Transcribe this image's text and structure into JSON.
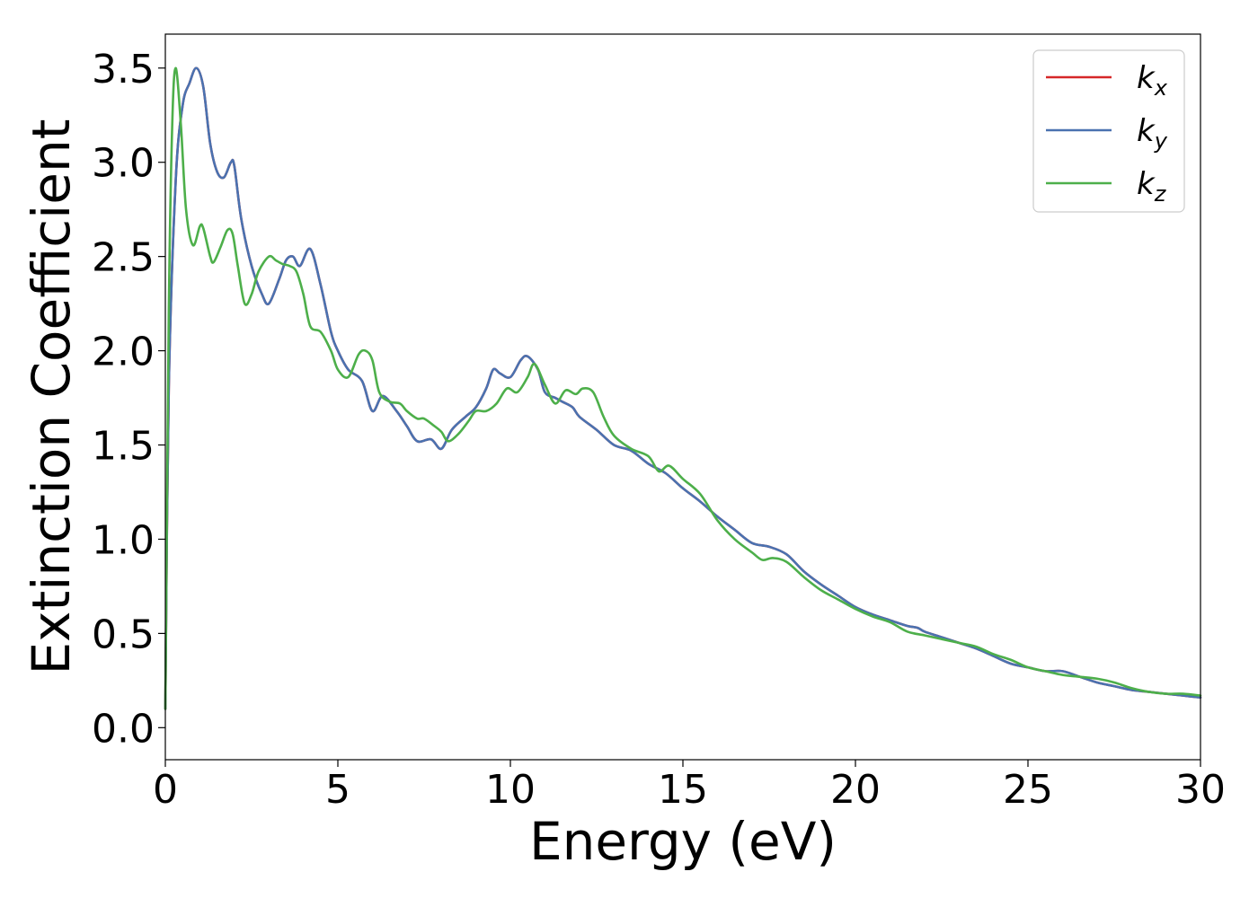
{
  "chart_data": {
    "type": "line",
    "title": "",
    "xlabel": "Energy (eV)",
    "ylabel": "Extinction Coefficient",
    "xlim": [
      0,
      30
    ],
    "ylim": [
      -0.17,
      3.68
    ],
    "xticks": [
      0,
      5,
      10,
      15,
      20,
      25,
      30
    ],
    "xtick_labels": [
      "0",
      "5",
      "10",
      "15",
      "20",
      "25",
      "30"
    ],
    "yticks": [
      0.0,
      0.5,
      1.0,
      1.5,
      2.0,
      2.5,
      3.0,
      3.5
    ],
    "ytick_labels": [
      "0.0",
      "0.5",
      "1.0",
      "1.5",
      "2.0",
      "2.5",
      "3.0",
      "3.5"
    ],
    "grid": false,
    "legend_position": "top-right",
    "series": [
      {
        "name": "k",
        "subscript": "x",
        "color": "#d62728",
        "x": [
          0,
          0.1,
          0.3,
          0.5,
          0.7,
          0.9,
          1.1,
          1.3,
          1.5,
          1.7,
          1.9,
          2.0,
          2.2,
          2.5,
          2.8,
          3.0,
          3.3,
          3.5,
          3.7,
          3.9,
          4.2,
          4.5,
          4.8,
          5.0,
          5.3,
          5.7,
          6.0,
          6.3,
          6.7,
          7.0,
          7.3,
          7.7,
          8.0,
          8.3,
          8.7,
          9.0,
          9.3,
          9.5,
          9.7,
          10.0,
          10.3,
          10.5,
          10.8,
          11.0,
          11.3,
          11.5,
          11.8,
          12.0,
          12.5,
          13.0,
          13.5,
          14.0,
          14.5,
          15.0,
          15.5,
          16.0,
          16.5,
          17.0,
          17.5,
          18.0,
          18.5,
          19.0,
          19.5,
          20.0,
          20.5,
          21.0,
          21.5,
          21.8,
          22.0,
          22.5,
          23.0,
          23.5,
          24.0,
          24.5,
          25.0,
          25.5,
          26.0,
          26.5,
          27.0,
          27.5,
          28.0,
          28.5,
          29.0,
          29.5,
          30.0
        ],
        "values": [
          0.1,
          1.8,
          2.9,
          3.3,
          3.42,
          3.5,
          3.4,
          3.1,
          2.95,
          2.92,
          3.0,
          2.98,
          2.7,
          2.45,
          2.3,
          2.25,
          2.38,
          2.48,
          2.5,
          2.45,
          2.54,
          2.35,
          2.1,
          2.0,
          1.9,
          1.84,
          1.68,
          1.76,
          1.68,
          1.6,
          1.52,
          1.53,
          1.48,
          1.58,
          1.65,
          1.7,
          1.8,
          1.9,
          1.88,
          1.86,
          1.95,
          1.97,
          1.9,
          1.78,
          1.75,
          1.73,
          1.7,
          1.65,
          1.58,
          1.5,
          1.47,
          1.4,
          1.35,
          1.27,
          1.2,
          1.12,
          1.05,
          0.98,
          0.96,
          0.92,
          0.83,
          0.76,
          0.7,
          0.64,
          0.6,
          0.57,
          0.54,
          0.53,
          0.51,
          0.48,
          0.45,
          0.42,
          0.38,
          0.34,
          0.32,
          0.3,
          0.3,
          0.27,
          0.24,
          0.22,
          0.2,
          0.19,
          0.18,
          0.17,
          0.16
        ]
      },
      {
        "name": "k",
        "subscript": "y",
        "color": "#4a72b0",
        "x": [
          0,
          0.1,
          0.3,
          0.5,
          0.7,
          0.9,
          1.1,
          1.3,
          1.5,
          1.7,
          1.9,
          2.0,
          2.2,
          2.5,
          2.8,
          3.0,
          3.3,
          3.5,
          3.7,
          3.9,
          4.2,
          4.5,
          4.8,
          5.0,
          5.3,
          5.7,
          6.0,
          6.3,
          6.7,
          7.0,
          7.3,
          7.7,
          8.0,
          8.3,
          8.7,
          9.0,
          9.3,
          9.5,
          9.7,
          10.0,
          10.3,
          10.5,
          10.8,
          11.0,
          11.3,
          11.5,
          11.8,
          12.0,
          12.5,
          13.0,
          13.5,
          14.0,
          14.5,
          15.0,
          15.5,
          16.0,
          16.5,
          17.0,
          17.5,
          18.0,
          18.5,
          19.0,
          19.5,
          20.0,
          20.5,
          21.0,
          21.5,
          21.8,
          22.0,
          22.5,
          23.0,
          23.5,
          24.0,
          24.5,
          25.0,
          25.5,
          26.0,
          26.5,
          27.0,
          27.5,
          28.0,
          28.5,
          29.0,
          29.5,
          30.0
        ],
        "values": [
          0.1,
          1.8,
          2.9,
          3.3,
          3.42,
          3.5,
          3.4,
          3.1,
          2.95,
          2.92,
          3.0,
          2.98,
          2.7,
          2.45,
          2.3,
          2.25,
          2.38,
          2.48,
          2.5,
          2.45,
          2.54,
          2.35,
          2.1,
          2.0,
          1.9,
          1.84,
          1.68,
          1.76,
          1.68,
          1.6,
          1.52,
          1.53,
          1.48,
          1.58,
          1.65,
          1.7,
          1.8,
          1.9,
          1.88,
          1.86,
          1.95,
          1.97,
          1.9,
          1.78,
          1.75,
          1.73,
          1.7,
          1.65,
          1.58,
          1.5,
          1.47,
          1.4,
          1.35,
          1.27,
          1.2,
          1.12,
          1.05,
          0.98,
          0.96,
          0.92,
          0.83,
          0.76,
          0.7,
          0.64,
          0.6,
          0.57,
          0.54,
          0.53,
          0.51,
          0.48,
          0.45,
          0.42,
          0.38,
          0.34,
          0.32,
          0.3,
          0.3,
          0.27,
          0.24,
          0.22,
          0.2,
          0.19,
          0.18,
          0.17,
          0.16
        ]
      },
      {
        "name": "k",
        "subscript": "z",
        "color": "#4daf4a",
        "x": [
          0,
          0.1,
          0.2,
          0.3,
          0.45,
          0.6,
          0.8,
          1.0,
          1.1,
          1.3,
          1.4,
          1.6,
          1.8,
          1.95,
          2.1,
          2.3,
          2.5,
          2.7,
          3.0,
          3.2,
          3.4,
          3.6,
          3.8,
          4.0,
          4.2,
          4.5,
          4.8,
          5.0,
          5.3,
          5.6,
          5.8,
          6.0,
          6.2,
          6.5,
          6.8,
          7.0,
          7.3,
          7.5,
          7.8,
          8.0,
          8.2,
          8.5,
          8.8,
          9.0,
          9.3,
          9.6,
          9.9,
          10.2,
          10.5,
          10.7,
          11.0,
          11.3,
          11.6,
          11.9,
          12.1,
          12.4,
          12.7,
          13.0,
          13.5,
          14.0,
          14.3,
          14.6,
          15.0,
          15.5,
          16.0,
          16.5,
          17.0,
          17.3,
          17.6,
          18.0,
          18.5,
          19.0,
          19.5,
          20.0,
          20.5,
          21.0,
          21.5,
          22.0,
          22.5,
          23.0,
          23.5,
          24.0,
          24.5,
          25.0,
          25.5,
          26.0,
          26.5,
          27.0,
          27.5,
          28.0,
          28.5,
          29.0,
          29.5,
          30.0
        ],
        "values": [
          0.1,
          2.2,
          3.2,
          3.5,
          3.2,
          2.75,
          2.56,
          2.66,
          2.65,
          2.5,
          2.47,
          2.55,
          2.64,
          2.62,
          2.45,
          2.25,
          2.3,
          2.42,
          2.5,
          2.48,
          2.46,
          2.45,
          2.42,
          2.3,
          2.13,
          2.1,
          2.0,
          1.9,
          1.86,
          1.98,
          2.0,
          1.95,
          1.78,
          1.73,
          1.72,
          1.68,
          1.64,
          1.64,
          1.6,
          1.57,
          1.52,
          1.56,
          1.63,
          1.68,
          1.68,
          1.72,
          1.8,
          1.78,
          1.86,
          1.93,
          1.82,
          1.72,
          1.79,
          1.77,
          1.8,
          1.78,
          1.65,
          1.55,
          1.48,
          1.44,
          1.36,
          1.39,
          1.32,
          1.24,
          1.1,
          1.0,
          0.93,
          0.89,
          0.9,
          0.88,
          0.8,
          0.73,
          0.68,
          0.63,
          0.59,
          0.56,
          0.51,
          0.49,
          0.47,
          0.45,
          0.43,
          0.39,
          0.36,
          0.32,
          0.3,
          0.28,
          0.27,
          0.26,
          0.24,
          0.21,
          0.19,
          0.18,
          0.18,
          0.17
        ]
      }
    ]
  }
}
